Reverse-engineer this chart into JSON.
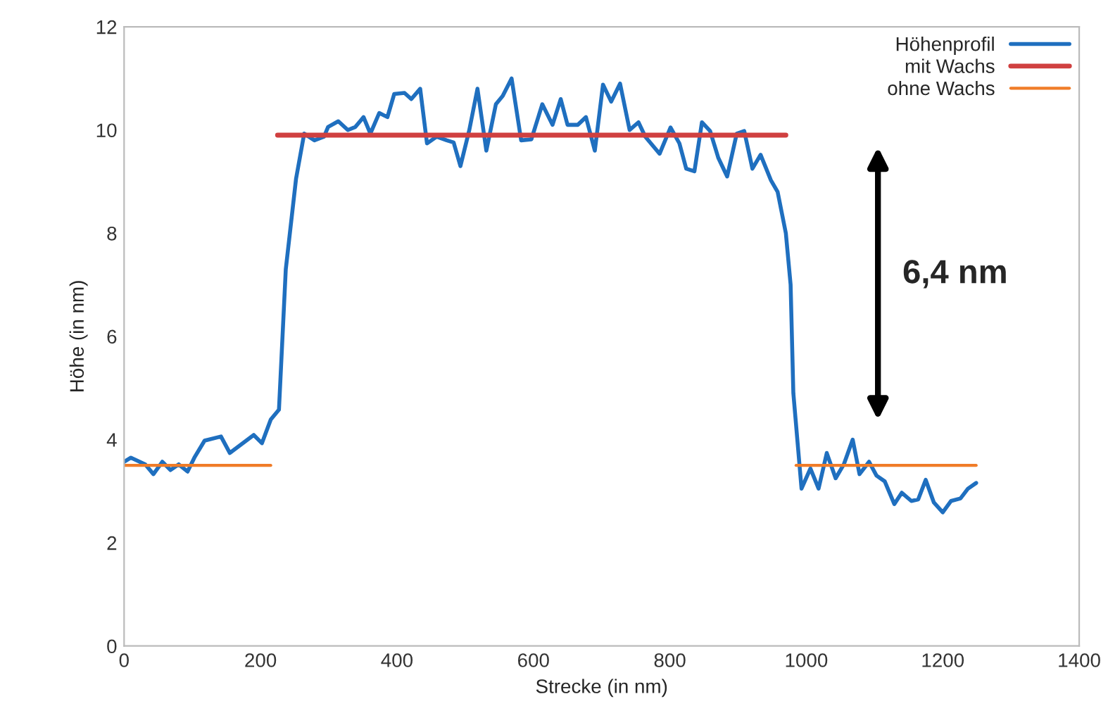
{
  "chart_data": {
    "type": "line",
    "xlabel": "Strecke (in nm)",
    "ylabel": "Höhe (in nm)",
    "xlim": [
      0,
      1400
    ],
    "xticks": [
      0,
      200,
      400,
      600,
      800,
      1000,
      1200,
      1400
    ],
    "ylim": [
      0,
      12
    ],
    "yticks": [
      0,
      2,
      4,
      6,
      8,
      10,
      12
    ],
    "grid": false,
    "legend": "top right",
    "marker": "none",
    "line_style": "solid",
    "series": [
      {
        "name": "Höhenprofil",
        "color": "#1f6fbf",
        "x": [
          0,
          10,
          31,
          43,
          56,
          68,
          80,
          93,
          103,
          118,
          142,
          155,
          190,
          202,
          215,
          227,
          237,
          252,
          264,
          279,
          293,
          299,
          314,
          328,
          339,
          351,
          361,
          374,
          386,
          396,
          411,
          421,
          434,
          444,
          458,
          473,
          483,
          493,
          506,
          518,
          531,
          545,
          555,
          568,
          582,
          597,
          613,
          628,
          640,
          650,
          665,
          677,
          690,
          702,
          714,
          727,
          741,
          754,
          764,
          785,
          801,
          814,
          824,
          836,
          847,
          859,
          871,
          884,
          898,
          909,
          921,
          933,
          948,
          958,
          970,
          977,
          981,
          993,
          1006,
          1018,
          1030,
          1043,
          1055,
          1068,
          1078,
          1092,
          1103,
          1115,
          1129,
          1140,
          1154,
          1164,
          1175,
          1187,
          1200,
          1212,
          1226,
          1237,
          1249
        ],
        "values": [
          3.57,
          3.65,
          3.52,
          3.33,
          3.57,
          3.41,
          3.52,
          3.38,
          3.65,
          3.98,
          4.06,
          3.74,
          4.09,
          3.93,
          4.39,
          4.58,
          7.3,
          9.05,
          9.93,
          9.8,
          9.87,
          10.06,
          10.17,
          10.0,
          10.06,
          10.25,
          9.93,
          10.33,
          10.25,
          10.7,
          10.72,
          10.6,
          10.8,
          9.74,
          9.87,
          9.8,
          9.76,
          9.3,
          10.0,
          10.8,
          9.6,
          10.5,
          10.66,
          11.0,
          9.8,
          9.82,
          10.5,
          10.1,
          10.6,
          10.1,
          10.1,
          10.25,
          9.6,
          10.88,
          10.55,
          10.9,
          10.0,
          10.15,
          9.87,
          9.54,
          10.05,
          9.74,
          9.25,
          9.2,
          10.15,
          9.98,
          9.46,
          9.1,
          9.93,
          9.98,
          9.25,
          9.52,
          9.03,
          8.8,
          8.0,
          7.0,
          4.9,
          3.05,
          3.44,
          3.05,
          3.74,
          3.25,
          3.52,
          4.0,
          3.33,
          3.57,
          3.3,
          3.19,
          2.75,
          2.97,
          2.81,
          2.84,
          3.22,
          2.78,
          2.59,
          2.81,
          2.86,
          3.05,
          3.16
        ]
      },
      {
        "name": "mit Wachs",
        "color": "#d04040",
        "x": [
          225,
          970
        ],
        "values": [
          9.9,
          9.9
        ]
      },
      {
        "name": "ohne Wachs",
        "color": "#f07c28",
        "x": [
          0,
          215
        ],
        "values": [
          3.5,
          3.5
        ]
      },
      {
        "color": "#f07c28",
        "x": [
          985,
          1249
        ],
        "values": [
          3.5,
          3.5
        ]
      }
    ],
    "annotations": [
      "6,4 nm"
    ]
  }
}
